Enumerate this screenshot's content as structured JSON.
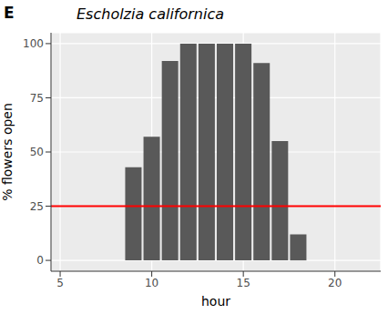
{
  "panel": "E",
  "chart_data": {
    "type": "bar",
    "title": "Escholzia californica",
    "x_label": "hour",
    "y_label": "% flowers open",
    "x": [
      9,
      10,
      11,
      12,
      13,
      14,
      15,
      16,
      17,
      18
    ],
    "values": [
      43,
      57,
      92,
      100,
      100,
      100,
      100,
      91,
      55,
      12
    ],
    "color": "#595959",
    "xlim": [
      4.5,
      22.5
    ],
    "xticks": [
      5,
      10,
      15,
      20
    ],
    "ylim": [
      -5,
      105
    ],
    "yticks": [
      0,
      25,
      50,
      75,
      100
    ],
    "grid": true,
    "reference_line": {
      "value": 25,
      "color": "#ff0000"
    }
  }
}
